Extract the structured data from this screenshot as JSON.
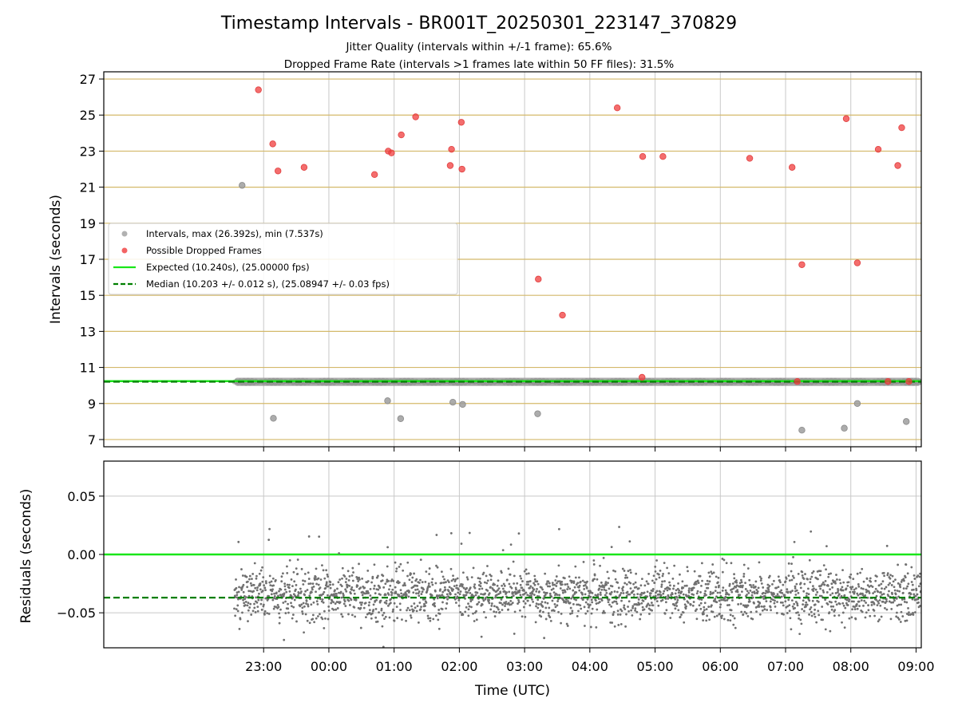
{
  "title": "Timestamp Intervals - BR001T_20250301_223147_370829",
  "subtitle_1": "Jitter Quality (intervals within +/-1 frame): 65.6%",
  "subtitle_2": "Dropped Frame Rate (intervals >1 frames late within 50 FF files): 31.5%",
  "colors": {
    "interval_points": "#9e9e9e",
    "dropped_points": "#f03c3c",
    "expected_line": "#19e619",
    "median_line": "#007f00",
    "y_grid_top": "#d4b96a",
    "grid": "#c8c8c8",
    "residual_points": "#707070"
  },
  "chart_data": [
    {
      "type": "scatter",
      "ylabel": "Intervals (seconds)",
      "x_unit": "hours_since_22:00_UTC",
      "xlim": [
        -1.45,
        11.08
      ],
      "ylim": [
        6.6,
        27.4
      ],
      "yticks": [
        7,
        9,
        11,
        13,
        15,
        17,
        19,
        21,
        23,
        25,
        27
      ],
      "xticks": [
        1,
        2,
        3,
        4,
        5,
        6,
        7,
        8,
        9,
        10,
        11
      ],
      "legend_position": "center-left",
      "legend": [
        {
          "kind": "marker",
          "color_key": "interval_points",
          "label": "Intervals, max (26.392s), min (7.537s)"
        },
        {
          "kind": "marker",
          "color_key": "dropped_points",
          "label": "Possible Dropped Frames"
        },
        {
          "kind": "solid",
          "color_key": "expected_line",
          "label": "Expected (10.240s), (25.00000 fps)"
        },
        {
          "kind": "dashed",
          "color_key": "median_line",
          "label": "Median (10.203 +/- 0.012 s), (25.08947 +/- 0.03 fps)"
        }
      ],
      "expected": 10.24,
      "median": 10.203,
      "band": {
        "x_start": 0.55,
        "x_end": 11.08,
        "center": 10.203,
        "half_width": 0.05
      },
      "series": [
        {
          "name": "Intervals",
          "points": [
            [
              0.67,
              21.1
            ],
            [
              1.15,
              8.18
            ],
            [
              2.9,
              9.15
            ],
            [
              3.1,
              8.16
            ],
            [
              3.9,
              9.07
            ],
            [
              4.05,
              8.95
            ],
            [
              5.2,
              8.43
            ],
            [
              9.25,
              7.52
            ],
            [
              9.9,
              7.63
            ],
            [
              10.1,
              9.0
            ],
            [
              10.85,
              8.0
            ]
          ]
        },
        {
          "name": "Possible Dropped Frames",
          "points": [
            [
              0.92,
              26.4
            ],
            [
              1.14,
              23.4
            ],
            [
              1.22,
              21.9
            ],
            [
              1.62,
              22.1
            ],
            [
              2.7,
              21.7
            ],
            [
              2.91,
              23.0
            ],
            [
              2.96,
              22.9
            ],
            [
              3.11,
              23.9
            ],
            [
              3.33,
              24.9
            ],
            [
              3.86,
              22.2
            ],
            [
              3.88,
              23.1
            ],
            [
              4.03,
              24.6
            ],
            [
              4.04,
              22.0
            ],
            [
              5.21,
              15.9
            ],
            [
              5.58,
              13.9
            ],
            [
              6.42,
              25.4
            ],
            [
              6.8,
              10.45
            ],
            [
              6.81,
              22.7
            ],
            [
              7.12,
              22.7
            ],
            [
              8.45,
              22.6
            ],
            [
              9.1,
              22.1
            ],
            [
              9.18,
              10.22
            ],
            [
              9.25,
              16.7
            ],
            [
              9.93,
              24.8
            ],
            [
              10.1,
              16.8
            ],
            [
              10.42,
              23.1
            ],
            [
              10.57,
              10.22
            ],
            [
              10.72,
              22.2
            ],
            [
              10.78,
              24.3
            ],
            [
              10.89,
              10.22
            ]
          ]
        }
      ]
    },
    {
      "type": "scatter",
      "ylabel": "Residuals (seconds)",
      "xlabel": "Time (UTC)",
      "x_unit": "hours_since_22:00_UTC",
      "xlim": [
        -1.45,
        11.08
      ],
      "ylim": [
        -0.08,
        0.08
      ],
      "yticks": [
        -0.05,
        0.0,
        0.05
      ],
      "ytick_labels": [
        "−0.05",
        "0.00",
        "0.05"
      ],
      "xticks": [
        1,
        2,
        3,
        4,
        5,
        6,
        7,
        8,
        9,
        10,
        11
      ],
      "xtick_labels": [
        "23:00",
        "00:00",
        "01:00",
        "02:00",
        "03:00",
        "04:00",
        "05:00",
        "06:00",
        "07:00",
        "08:00",
        "09:00"
      ],
      "expected_residual": 0.0,
      "median_residual": -0.037,
      "residuals": {
        "x_start": 0.55,
        "x_end": 11.08,
        "count": 2400,
        "mean": -0.035,
        "spread": 0.011
      }
    }
  ]
}
